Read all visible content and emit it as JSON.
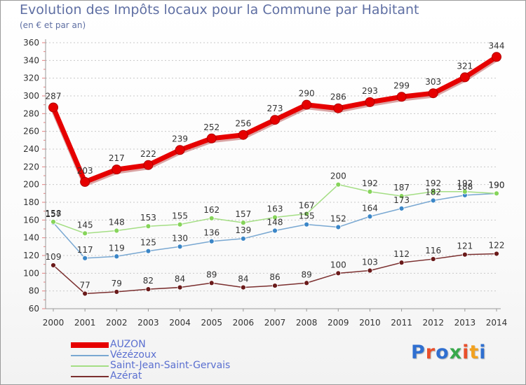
{
  "header": {
    "title": "Evolution des Impôts locaux pour la Commune par Habitant",
    "subtitle": "(en € et par an)"
  },
  "logo": {
    "text": "Proxiti",
    "colors": [
      "#2f6fd0",
      "#e94f2b",
      "#2f6fd0",
      "#37a84a",
      "#e94f2b",
      "#f2a11e",
      "#2f6fd0"
    ]
  },
  "chart_data": {
    "type": "line",
    "title": "Evolution des Impôts locaux pour la Commune par Habitant",
    "subtitle": "(en € et par an)",
    "xlabel": "",
    "ylabel": "",
    "x": [
      "2000",
      "2001",
      "2002",
      "2003",
      "2004",
      "2005",
      "2006",
      "2007",
      "2008",
      "2009",
      "2010",
      "2011",
      "2012",
      "2013",
      "2014"
    ],
    "ylim": [
      60,
      360
    ],
    "yticks": [
      60,
      80,
      100,
      120,
      140,
      160,
      180,
      200,
      220,
      240,
      260,
      280,
      300,
      320,
      340,
      360
    ],
    "grid": "horizontal dotted",
    "legend_position": "bottom-left",
    "series": [
      {
        "name": "AUZON",
        "color": "#e60000",
        "marker": "#e60000",
        "bold": true,
        "values": [
          287,
          203,
          217,
          222,
          239,
          252,
          256,
          273,
          290,
          286,
          293,
          299,
          303,
          321,
          344
        ]
      },
      {
        "name": "Vézézoux",
        "color": "#79a8d2",
        "marker": "#3b86c7",
        "bold": false,
        "values": [
          157,
          117,
          119,
          125,
          130,
          136,
          139,
          148,
          155,
          152,
          164,
          173,
          182,
          188,
          190
        ]
      },
      {
        "name": "Saint-Jean-Saint-Gervais",
        "color": "#a4de84",
        "marker": "#86d45a",
        "bold": false,
        "values": [
          158,
          145,
          148,
          153,
          155,
          162,
          157,
          163,
          167,
          200,
          192,
          187,
          192,
          192,
          190
        ]
      },
      {
        "name": "Azérat",
        "color": "#7b2f2f",
        "marker": "#6a1a1a",
        "bold": false,
        "values": [
          109,
          77,
          79,
          82,
          84,
          89,
          84,
          86,
          89,
          100,
          103,
          112,
          116,
          121,
          122
        ]
      }
    ]
  }
}
